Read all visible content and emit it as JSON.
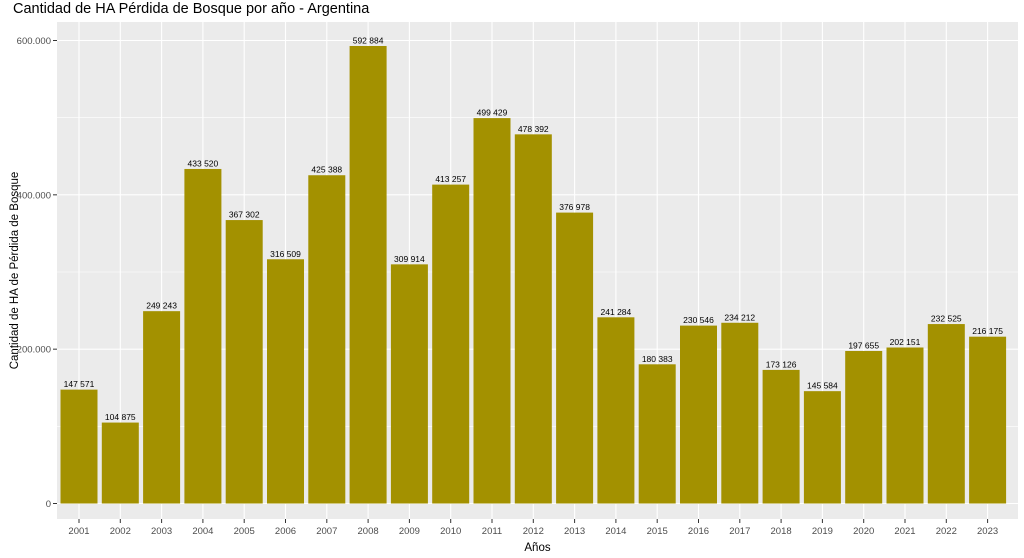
{
  "chart_data": {
    "type": "bar",
    "title": "Cantidad de HA Pérdida de Bosque por año - Argentina",
    "xlabel": "Años",
    "ylabel": "Cantidad de HA de Pérdida de Bosque",
    "categories": [
      "2001",
      "2002",
      "2003",
      "2004",
      "2005",
      "2006",
      "2007",
      "2008",
      "2009",
      "2010",
      "2011",
      "2012",
      "2013",
      "2014",
      "2015",
      "2016",
      "2017",
      "2018",
      "2019",
      "2020",
      "2021",
      "2022",
      "2023"
    ],
    "values": [
      147571,
      104875,
      249243,
      433520,
      367302,
      316509,
      425388,
      592884,
      309914,
      413257,
      499429,
      478392,
      376978,
      241284,
      180383,
      230546,
      234212,
      173126,
      145584,
      197655,
      202151,
      232525,
      216175
    ],
    "value_labels": [
      "147 571",
      "104 875",
      "249 243",
      "433 520",
      "367 302",
      "316 509",
      "425 388",
      "592 884",
      "309 914",
      "413 257",
      "499 429",
      "478 392",
      "376 978",
      "241 284",
      "180 383",
      "230 546",
      "234 212",
      "173 126",
      "145 584",
      "197 655",
      "202 151",
      "232 525",
      "216 175"
    ],
    "yticks": [
      0,
      200000,
      400000,
      600000
    ],
    "ytick_labels": [
      "0",
      "200.000",
      "400.000",
      "600.000"
    ],
    "ylim": [
      0,
      600000
    ],
    "grid": true,
    "legend": "none",
    "bar_color": "#a39100",
    "panel_color": "#ebebeb",
    "grid_color": "#ffffff"
  }
}
